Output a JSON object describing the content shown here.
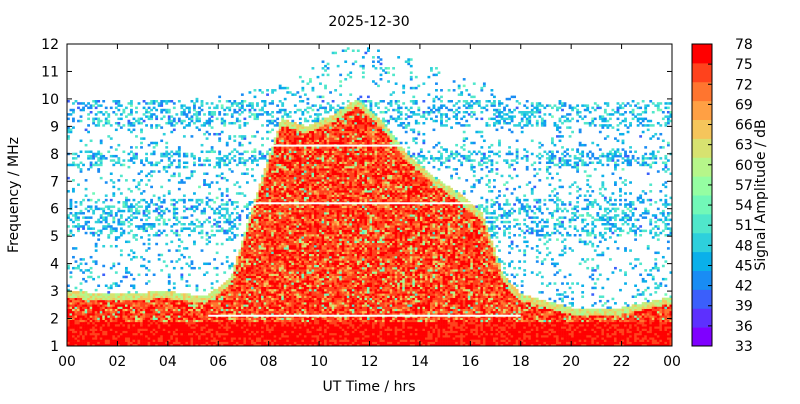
{
  "chart_data": {
    "type": "heatmap",
    "title": "2025-12-30",
    "xlabel": "UT Time / hrs",
    "ylabel": "Frequency / MHz",
    "colorbar_label": "Signal Amplitude / dB",
    "x_range": [
      0,
      24
    ],
    "y_range": [
      1,
      12
    ],
    "x_ticks": [
      "00",
      "02",
      "04",
      "06",
      "08",
      "10",
      "12",
      "14",
      "16",
      "18",
      "20",
      "22",
      "00"
    ],
    "y_ticks": [
      "1",
      "2",
      "3",
      "4",
      "5",
      "6",
      "7",
      "8",
      "9",
      "10",
      "11",
      "12"
    ],
    "color_scale": {
      "min": 33,
      "max": 78,
      "ticks": [
        "33",
        "36",
        "39",
        "42",
        "45",
        "48",
        "51",
        "54",
        "57",
        "60",
        "63",
        "66",
        "69",
        "72",
        "75",
        "78"
      ],
      "colors": [
        "#7f00ff",
        "#5d30fe",
        "#3b5ffb",
        "#198cf4",
        "#0ab0ea",
        "#2ed0dc",
        "#50e7cb",
        "#72f8b8",
        "#95fea2",
        "#b6f68a",
        "#d7e270",
        "#f5c55b",
        "#ffa044",
        "#ff752f",
        "#ff421c",
        "#ff0000"
      ]
    },
    "profile": {
      "hours": [
        0,
        2,
        4,
        5.5,
        6.5,
        7.5,
        8.5,
        9.5,
        10.5,
        11.5,
        12.5,
        13.5,
        14.5,
        15.5,
        16.5,
        17.3,
        18,
        20,
        22,
        24
      ],
      "strong_echo_top_mhz": [
        3.0,
        2.9,
        3.0,
        2.8,
        3.5,
        6.5,
        9.3,
        9.0,
        9.4,
        10.0,
        9.2,
        8.0,
        7.2,
        6.6,
        5.8,
        3.6,
        2.9,
        2.4,
        2.4,
        2.8
      ],
      "scatter_top_mhz": [
        10.0,
        10.0,
        10.0,
        10.1,
        10.2,
        10.4,
        10.5,
        11.0,
        11.8,
        11.9,
        11.8,
        11.5,
        11.2,
        10.8,
        10.6,
        10.3,
        10.0,
        9.9,
        9.9,
        10.0
      ]
    },
    "interference_lines_mhz": [
      2.1,
      6.2,
      8.3
    ],
    "grid": false,
    "legend": "colorbar-right"
  }
}
